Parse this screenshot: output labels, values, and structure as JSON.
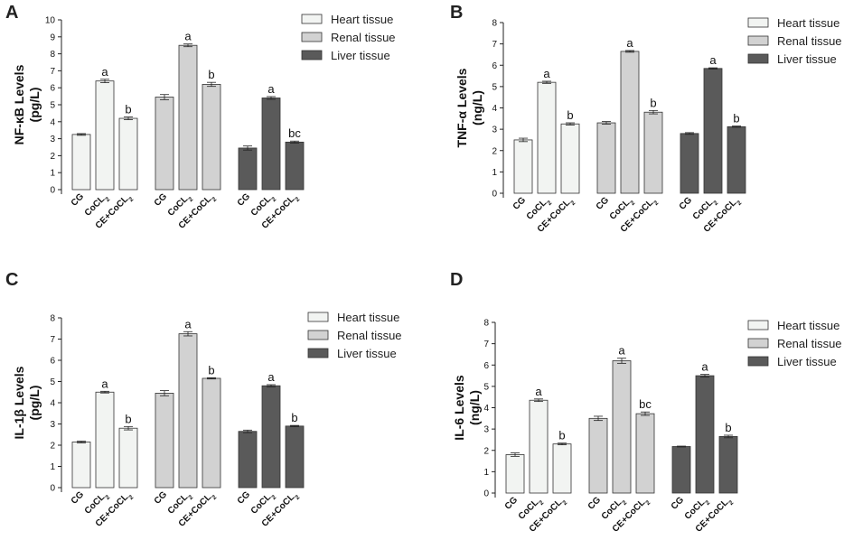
{
  "chart_data": [
    {
      "type": "bar",
      "panel": "A",
      "ylabel": [
        "NF-κB Levels",
        "(pg/L)"
      ],
      "ylim": [
        0,
        10
      ],
      "yticks": [
        0,
        1,
        2,
        3,
        4,
        5,
        6,
        7,
        8,
        9,
        10
      ],
      "categories": [
        "CG",
        "CoCL2",
        "CE+CoCL2"
      ],
      "series": [
        {
          "name": "Heart tissue",
          "values": [
            3.25,
            6.4,
            4.2
          ],
          "errors": [
            0.05,
            0.1,
            0.08
          ],
          "labels": [
            "",
            "a",
            "b"
          ]
        },
        {
          "name": "Renal tissue",
          "values": [
            5.45,
            8.5,
            6.2
          ],
          "errors": [
            0.15,
            0.08,
            0.12
          ],
          "labels": [
            "",
            "a",
            "b"
          ]
        },
        {
          "name": "Liver tissue",
          "values": [
            2.45,
            5.4,
            2.8
          ],
          "errors": [
            0.12,
            0.08,
            0.06
          ],
          "labels": [
            "",
            "a",
            "bc"
          ]
        }
      ]
    },
    {
      "type": "bar",
      "panel": "B",
      "ylabel": [
        "TNF-α Levels",
        "(ng/L)"
      ],
      "ylim": [
        0,
        8
      ],
      "yticks": [
        0,
        1,
        2,
        3,
        4,
        5,
        6,
        7,
        8
      ],
      "categories": [
        "CG",
        "CoCL2",
        "CE+CoCL2"
      ],
      "series": [
        {
          "name": "Heart tissue",
          "values": [
            2.5,
            5.2,
            3.25
          ],
          "errors": [
            0.08,
            0.05,
            0.05
          ],
          "labels": [
            "",
            "a",
            "b"
          ]
        },
        {
          "name": "Renal tissue",
          "values": [
            3.3,
            6.65,
            3.8
          ],
          "errors": [
            0.06,
            0.04,
            0.08
          ],
          "labels": [
            "",
            "a",
            "b"
          ]
        },
        {
          "name": "Liver tissue",
          "values": [
            2.8,
            5.85,
            3.12
          ],
          "errors": [
            0.04,
            0.03,
            0.03
          ],
          "labels": [
            "",
            "a",
            "b"
          ]
        }
      ]
    },
    {
      "type": "bar",
      "panel": "C",
      "ylabel": [
        "IL-1β Levels",
        "(pg/L)"
      ],
      "ylim": [
        0,
        8
      ],
      "yticks": [
        0,
        1,
        2,
        3,
        4,
        5,
        6,
        7,
        8
      ],
      "categories": [
        "CG",
        "CoCL2",
        "CE+CoCL2"
      ],
      "series": [
        {
          "name": "Heart tissue",
          "values": [
            2.15,
            4.5,
            2.8
          ],
          "errors": [
            0.04,
            0.04,
            0.08
          ],
          "labels": [
            "",
            "a",
            "b"
          ]
        },
        {
          "name": "Renal tissue",
          "values": [
            4.45,
            7.25,
            5.15
          ],
          "errors": [
            0.12,
            0.1,
            0.03
          ],
          "labels": [
            "",
            "a",
            "b"
          ]
        },
        {
          "name": "Liver tissue",
          "values": [
            2.65,
            4.8,
            2.9
          ],
          "errors": [
            0.06,
            0.05,
            0.03
          ],
          "labels": [
            "",
            "a",
            "b"
          ]
        }
      ]
    },
    {
      "type": "bar",
      "panel": "D",
      "ylabel": [
        "IL-6 Levels",
        "(ng/L)"
      ],
      "ylim": [
        0,
        8
      ],
      "yticks": [
        0,
        1,
        2,
        3,
        4,
        5,
        6,
        7,
        8
      ],
      "categories": [
        "CG",
        "CoCL2",
        "CE+CoCL2"
      ],
      "series": [
        {
          "name": "Heart tissue",
          "values": [
            1.8,
            4.35,
            2.3
          ],
          "errors": [
            0.08,
            0.06,
            0.04
          ],
          "labels": [
            "",
            "a",
            "b"
          ]
        },
        {
          "name": "Renal tissue",
          "values": [
            3.5,
            6.2,
            3.72
          ],
          "errors": [
            0.1,
            0.12,
            0.08
          ],
          "labels": [
            "",
            "a",
            "bc"
          ]
        },
        {
          "name": "Liver tissue",
          "values": [
            2.18,
            5.5,
            2.65
          ],
          "errors": [
            0.02,
            0.06,
            0.06
          ],
          "labels": [
            "",
            "a",
            "b"
          ]
        }
      ]
    }
  ],
  "legend": [
    "Heart tissue",
    "Renal tissue",
    "Liver tissue"
  ],
  "colors": {
    "Heart tissue": "#f2f4f2",
    "Renal tissue": "#d2d2d2",
    "Liver tissue": "#5a5a5a",
    "stroke": "#333333"
  }
}
